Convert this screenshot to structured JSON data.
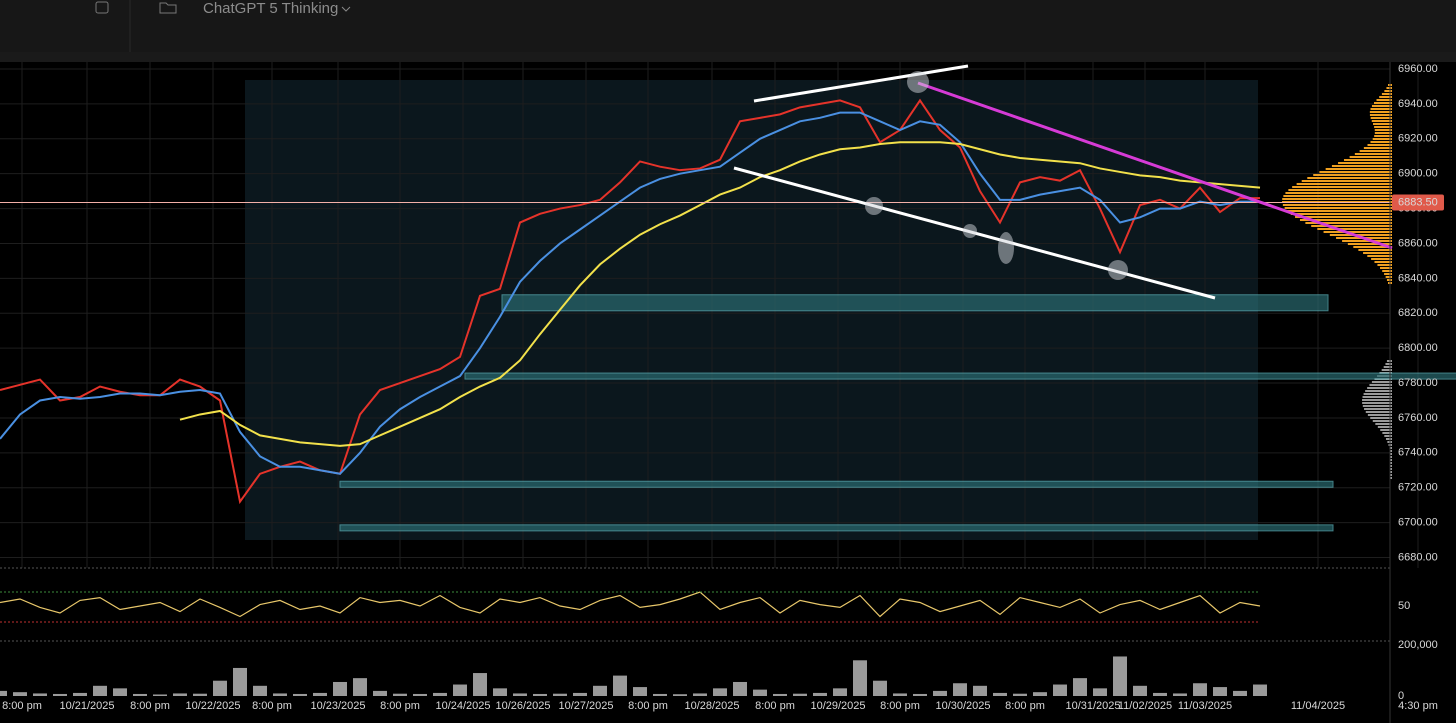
{
  "header": {
    "title": "ChatGPT 5 Thinking"
  },
  "chart_data": [
    {
      "type": "line",
      "ylim": [
        6674,
        6964
      ],
      "yticks": [
        {
          "value": 6680,
          "label": "6680.00"
        },
        {
          "value": 6700,
          "label": "6700.00"
        },
        {
          "value": 6720,
          "label": "6720.00"
        },
        {
          "value": 6740,
          "label": "6740.00"
        },
        {
          "value": 6760,
          "label": "6760.00"
        },
        {
          "value": 6780,
          "label": "6780.00"
        },
        {
          "value": 6800,
          "label": "6800.00"
        },
        {
          "value": 6820,
          "label": "6820.00"
        },
        {
          "value": 6840,
          "label": "6840.00"
        },
        {
          "value": 6860,
          "label": "6860.00"
        },
        {
          "value": 6880,
          "label": "6880.00"
        },
        {
          "value": 6900,
          "label": "6900.00"
        },
        {
          "value": 6920,
          "label": "6920.00"
        },
        {
          "value": 6940,
          "label": "6940.00"
        },
        {
          "value": 6960,
          "label": "6960.00"
        }
      ],
      "grid": true,
      "last_price": {
        "value": 6883.5,
        "label": "6883.50"
      },
      "bands": [
        6826,
        6784,
        6722,
        6697
      ],
      "series": [
        {
          "color": "#e5332a",
          "values": [
            6776,
            6779,
            6782,
            6770,
            6772,
            6778,
            6775,
            6773,
            6773,
            6782,
            6778,
            6770,
            6712,
            6728,
            6732,
            6735,
            6730,
            6728,
            6762,
            6776,
            6780,
            6784,
            6788,
            6795,
            6830,
            6834,
            6872,
            6877,
            6880,
            6882,
            6885,
            6895,
            6907,
            6904,
            6902,
            6903,
            6908,
            6930,
            6932,
            6934,
            6938,
            6940,
            6942,
            6938,
            6918,
            6925,
            6942,
            6925,
            6915,
            6890,
            6872,
            6895,
            6898,
            6896,
            6902,
            6880,
            6855,
            6882,
            6885,
            6880,
            6892,
            6878,
            6886,
            6886
          ]
        },
        {
          "color": "#4a90e2",
          "values": [
            6748,
            6762,
            6770,
            6772,
            6771,
            6772,
            6774,
            6774,
            6773,
            6775,
            6776,
            6774,
            6752,
            6738,
            6732,
            6732,
            6730,
            6728,
            6740,
            6755,
            6765,
            6772,
            6778,
            6784,
            6800,
            6818,
            6838,
            6850,
            6860,
            6868,
            6876,
            6884,
            6892,
            6897,
            6900,
            6902,
            6904,
            6912,
            6920,
            6925,
            6930,
            6932,
            6935,
            6935,
            6930,
            6925,
            6930,
            6928,
            6918,
            6900,
            6885,
            6885,
            6888,
            6890,
            6892,
            6885,
            6872,
            6875,
            6880,
            6880,
            6884,
            6882,
            6884,
            6884
          ]
        },
        {
          "color": "#f2e14b",
          "values": [
            null,
            null,
            null,
            null,
            null,
            null,
            null,
            null,
            null,
            6759,
            6762,
            6764,
            6756,
            6750,
            6748,
            6746,
            6745,
            6744,
            6745,
            6750,
            6755,
            6760,
            6765,
            6772,
            6778,
            6783,
            6793,
            6808,
            6822,
            6836,
            6848,
            6857,
            6865,
            6871,
            6876,
            6882,
            6888,
            6892,
            6898,
            6902,
            6907,
            6911,
            6914,
            6915,
            6917,
            6918,
            6918,
            6918,
            6917,
            6914,
            6911,
            6909,
            6908,
            6907,
            6906,
            6903,
            6901,
            6899,
            6898,
            6896,
            6895,
            6894,
            6893,
            6892
          ]
        }
      ]
    },
    {
      "type": "line",
      "ylim": [
        0,
        100
      ],
      "yticks": [
        50
      ],
      "series": [
        {
          "color": "#e8c76a",
          "values": [
            55,
            60,
            48,
            40,
            58,
            62,
            45,
            50,
            55,
            42,
            60,
            48,
            35,
            52,
            58,
            45,
            50,
            40,
            62,
            55,
            58,
            50,
            65,
            48,
            40,
            60,
            55,
            62,
            50,
            45,
            58,
            65,
            48,
            52,
            60,
            70,
            45,
            55,
            62,
            40,
            58,
            52,
            48,
            65,
            35,
            60,
            55,
            42,
            50,
            58,
            38,
            62,
            55,
            48,
            60,
            40,
            52,
            58,
            45,
            55,
            65,
            40,
            55,
            50
          ]
        }
      ]
    },
    {
      "type": "bar",
      "ylim": [
        0,
        200000
      ],
      "yticks": [
        0,
        {
          "value": 200000,
          "label": "200,000"
        }
      ],
      "color": "#9a9a9a",
      "values": [
        20000,
        15000,
        10000,
        8000,
        12000,
        40000,
        30000,
        8000,
        6000,
        10000,
        9000,
        60000,
        110000,
        40000,
        10000,
        8000,
        12000,
        55000,
        70000,
        20000,
        9000,
        8000,
        12000,
        45000,
        90000,
        30000,
        10000,
        8000,
        9000,
        12000,
        40000,
        80000,
        35000,
        8000,
        7000,
        10000,
        30000,
        55000,
        25000,
        8000,
        9000,
        12000,
        30000,
        140000,
        60000,
        10000,
        8000,
        20000,
        50000,
        40000,
        12000,
        9000,
        15000,
        45000,
        70000,
        30000,
        155000,
        40000,
        12000,
        10000,
        50000,
        35000,
        20000,
        45000
      ],
      "xtick_labels": [
        "8:00 pm",
        "10/21/2025",
        "8:00 pm",
        "10/22/2025",
        "8:00 pm",
        "10/23/2025",
        "8:00 pm",
        "10/24/2025",
        "10/26/2025",
        "10/27/2025",
        "8:00 pm",
        "10/28/2025",
        "8:00 pm",
        "10/29/2025",
        "8:00 pm",
        "10/30/2025",
        "8:00 pm",
        "10/31/2025",
        "11/02/2025",
        "11/03/2025",
        "11/04/2025",
        "4:30 pm"
      ]
    }
  ]
}
